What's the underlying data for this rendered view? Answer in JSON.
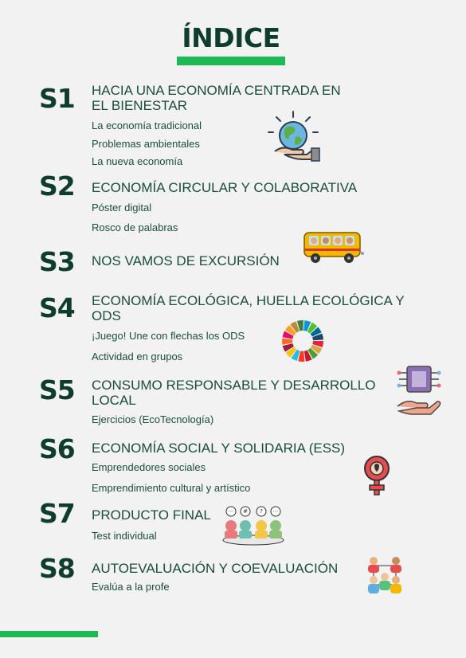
{
  "title": "ÍNDICE",
  "sections": [
    {
      "num": "S1",
      "heading": "HACIA UNA ECONOMÍA CENTRADA EN EL BIENESTAR",
      "items": [
        "La economía tradicional",
        "Problemas ambientales",
        "La nueva economía"
      ],
      "icon": "globe-hand-icon"
    },
    {
      "num": "S2",
      "heading": "ECONOMÍA CIRCULAR Y COLABORATIVA",
      "items": [
        "Póster digital",
        "Rosco de palabras"
      ],
      "icon": "school-bus-icon"
    },
    {
      "num": "S3",
      "heading": "NOS VAMOS DE EXCURSIÓN",
      "items": []
    },
    {
      "num": "S4",
      "heading": "ECONOMÍA ECOLÓGICA, HUELLA ECOLÓGICA Y ODS",
      "items": [
        "¡Juego! Une con flechas los ODS",
        "Actividad en grupos"
      ],
      "icon": "sdg-wheel-icon"
    },
    {
      "num": "S5",
      "heading": "CONSUMO RESPONSABLE Y DESARROLLO LOCAL",
      "items": [
        "Ejercicios (EcoTecnología)"
      ],
      "icon": "chip-hand-icon"
    },
    {
      "num": "S6",
      "heading": "ECONOMÍA SOCIAL Y SOLIDARIA (ESS)",
      "items": [
        "Emprendedores sociales",
        "Emprendimiento cultural y artístico"
      ],
      "icon": "female-symbol-icon"
    },
    {
      "num": "S7",
      "heading": "PRODUCTO FINAL",
      "items": [
        "Test individual"
      ],
      "icon": "team-meeting-icon"
    },
    {
      "num": "S8",
      "heading": "AUTOEVALUACIÓN Y COEVALUACIÓN",
      "items": [
        "Evalúa a la profe"
      ],
      "icon": "people-network-icon"
    }
  ]
}
